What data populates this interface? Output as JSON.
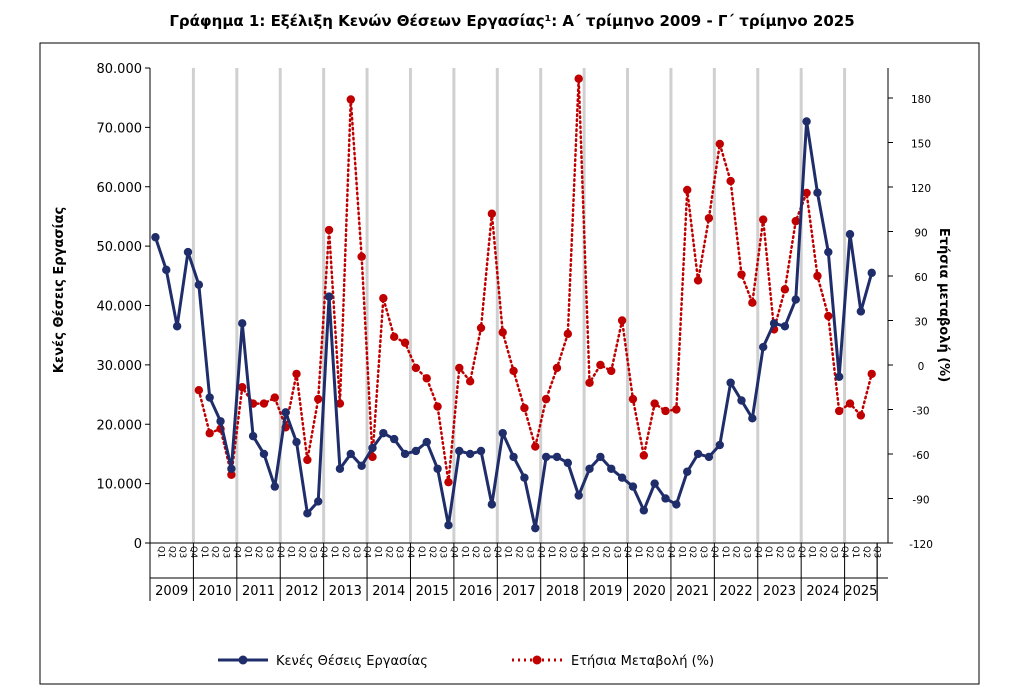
{
  "chart_data": {
    "type": "line",
    "title": "Γράφημα 1: Εξέλιξη Κενών Θέσεων Εργασίας¹: Α΄ τρίμηνο 2009 - Γ΄ τρίμηνο 2025",
    "ylabel": "Κενές Θέσεις Εργασίας",
    "y2label": "Ετήσια μεταβολή (%)",
    "ylim": [
      0,
      80000
    ],
    "y2lim": [
      -120,
      195
    ],
    "y_ticks": [
      "0",
      "10.000",
      "20.000",
      "30.000",
      "40.000",
      "50.000",
      "60.000",
      "70.000",
      "80.000"
    ],
    "y_tick_values": [
      0,
      10000,
      20000,
      30000,
      40000,
      50000,
      60000,
      70000,
      80000
    ],
    "y2_ticks": [
      "-120",
      "-90",
      "-60",
      "-30",
      "0",
      "30",
      "60",
      "90",
      "120",
      "150",
      "180"
    ],
    "y2_tick_values": [
      -120,
      -90,
      -60,
      -30,
      0,
      30,
      60,
      90,
      120,
      150,
      180
    ],
    "quarters": [
      "Q1",
      "Q2",
      "Q3",
      "Q4"
    ],
    "years": [
      "2009",
      "2010",
      "2011",
      "2012",
      "2013",
      "2014",
      "2015",
      "2016",
      "2017",
      "2018",
      "2019",
      "2020",
      "2021",
      "2022",
      "2023",
      "2024",
      "2025"
    ],
    "year_quarter_counts": [
      4,
      4,
      4,
      4,
      4,
      4,
      4,
      4,
      4,
      4,
      4,
      4,
      4,
      4,
      4,
      4,
      3
    ],
    "legend_position": "bottom",
    "grid": "vertical-year-bands",
    "series": [
      {
        "name": "Κενές Θέσεις Εργασίας",
        "axis": "left",
        "color": "#1f2d6b",
        "style": "solid",
        "values": [
          51500,
          46000,
          36500,
          49000,
          43500,
          24500,
          20500,
          12500,
          37000,
          18000,
          15000,
          9500,
          22000,
          17000,
          5000,
          7000,
          41500,
          12500,
          15000,
          13000,
          16000,
          18500,
          17500,
          15000,
          15500,
          17000,
          12500,
          3000,
          15500,
          15000,
          15500,
          6500,
          18500,
          14500,
          11000,
          2500,
          14500,
          14500,
          13500,
          8000,
          12500,
          14500,
          12500,
          11000,
          9500,
          5500,
          10000,
          7500,
          6500,
          12000,
          15000,
          14500,
          16500,
          27000,
          24000,
          21000,
          33000,
          37000,
          36500,
          41000,
          71000,
          59000,
          49000,
          28000,
          52000,
          39000,
          45500
        ]
      },
      {
        "name": "Ετήσια Μεταβολή (%)",
        "axis": "right",
        "color": "#c00000",
        "style": "dotted",
        "values": [
          null,
          null,
          null,
          null,
          -17,
          -46,
          -43,
          -74,
          -15,
          -26,
          -26,
          -22,
          -42,
          -6,
          -64,
          -23,
          91,
          -26,
          179,
          73,
          -62,
          45,
          19,
          15,
          -2,
          -9,
          -28,
          -79,
          -2,
          -11,
          25,
          102,
          22,
          -4,
          -29,
          -55,
          -23,
          -2,
          21,
          193,
          -12,
          0,
          -4,
          30,
          -23,
          -61,
          -26,
          -31,
          -30,
          118,
          57,
          99,
          149,
          124,
          61,
          42,
          98,
          24,
          51,
          97,
          116,
          60,
          33,
          -31,
          -26,
          -34,
          -6
        ]
      }
    ]
  }
}
